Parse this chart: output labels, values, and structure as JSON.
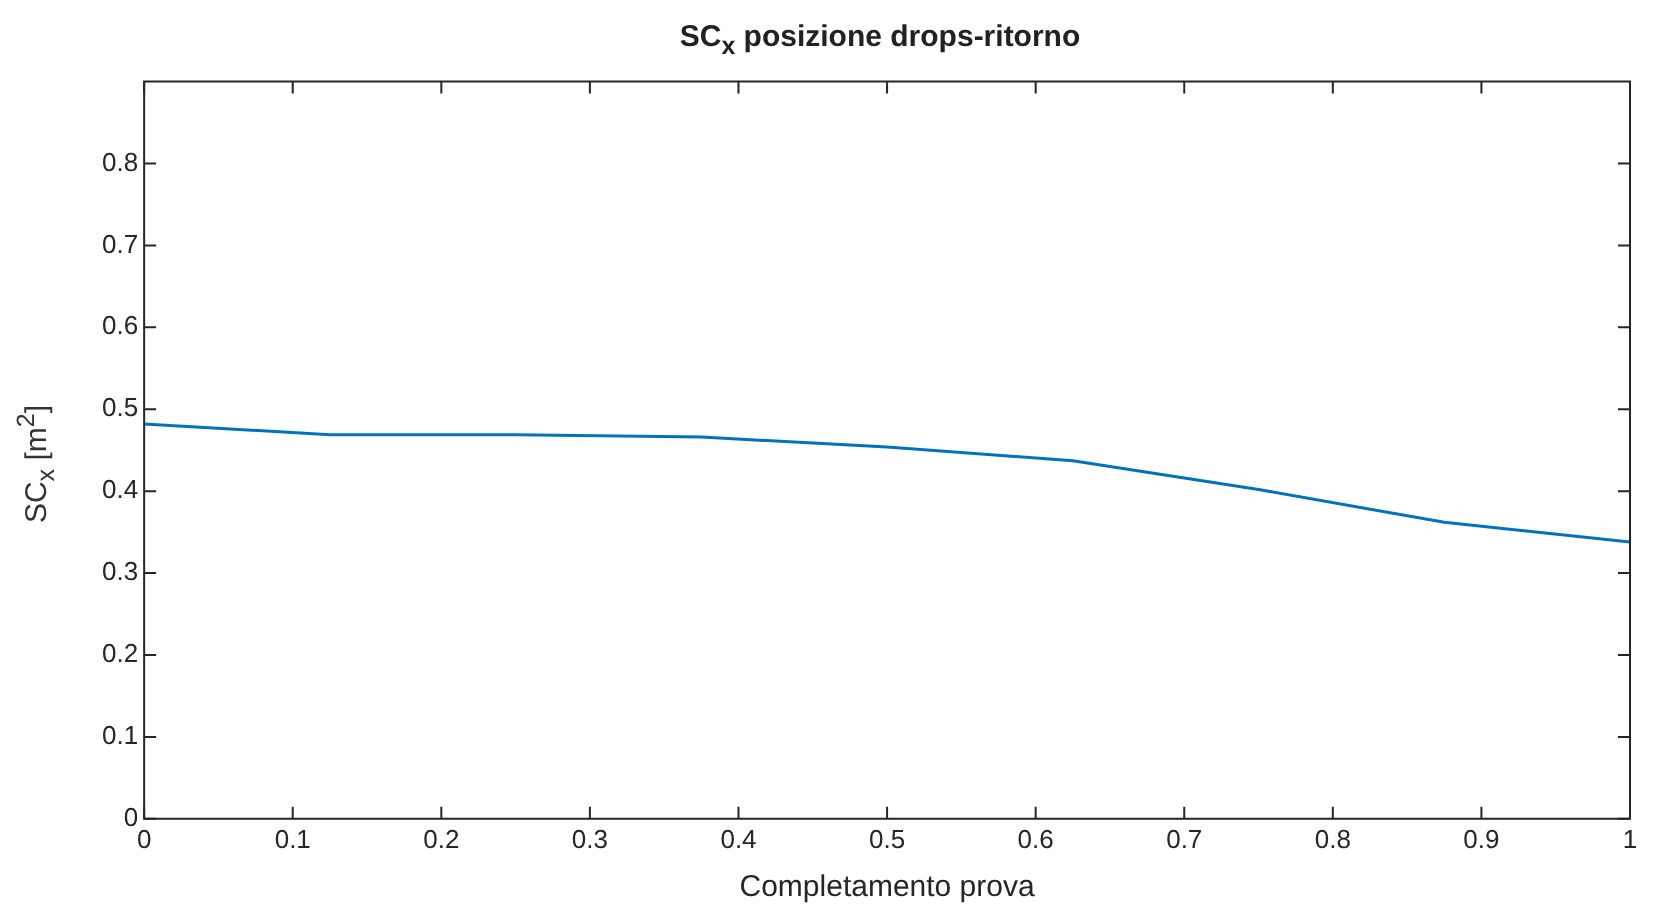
{
  "chart_data": {
    "type": "line",
    "title": "SC$_{x}$ posizione drops-ritorno",
    "xlabel": "Completamento prova",
    "ylabel": "SC$_{x}$ [m$^{2}$]",
    "x": [
      0,
      0.125,
      0.25,
      0.375,
      0.5,
      0.625,
      0.75,
      0.875,
      1
    ],
    "series": [
      {
        "color": "#0072bd",
        "values": [
          0.482,
          0.469,
          0.469,
          0.466,
          0.454,
          0.437,
          0.402,
          0.362,
          0.338
        ]
      }
    ],
    "xlim": [
      0,
      1
    ],
    "xticks": [
      0,
      0.1,
      0.2,
      0.3,
      0.4,
      0.5,
      0.6,
      0.7,
      0.8,
      0.9,
      1
    ],
    "ylim": [
      0,
      0.9
    ],
    "yticks": [
      0,
      0.1,
      0.2,
      0.3,
      0.4,
      0.5,
      0.6,
      0.7,
      0.8
    ],
    "grid": false,
    "legend": false,
    "marker": "none",
    "line_style": "solid"
  }
}
